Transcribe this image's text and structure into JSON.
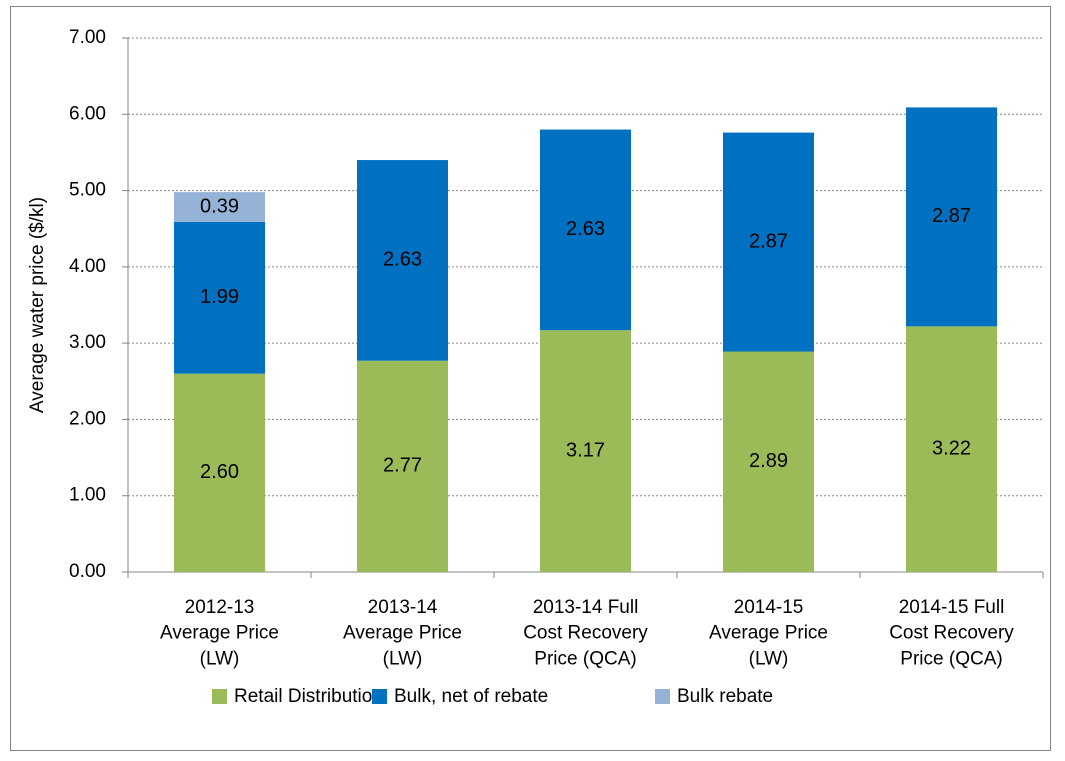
{
  "chart_data": {
    "type": "stacked_bar",
    "y_label": "Average water price ($/kl)",
    "categories": [
      "2012-13\nAverage Price\n(LW)",
      "2013-14\nAverage Price\n(LW)",
      "2013-14 Full\nCost Recovery\nPrice (QCA)",
      "2014-15\nAverage Price\n(LW)",
      "2014-15 Full\nCost Recovery\nPrice (QCA)"
    ],
    "series": [
      {
        "name": "Retail Distribution",
        "color": "#9bbb59",
        "values": [
          2.6,
          2.77,
          3.17,
          2.89,
          3.22
        ],
        "value_labels": [
          "2.60",
          "2.77",
          "3.17",
          "2.89",
          "3.22"
        ]
      },
      {
        "name": "Bulk, net of rebate",
        "color": "#0070c0",
        "values": [
          1.99,
          2.63,
          2.63,
          2.87,
          2.87
        ],
        "value_labels": [
          "1.99",
          "2.63",
          "2.63",
          "2.87",
          "2.87"
        ]
      },
      {
        "name": "Bulk rebate",
        "color": "#95b3d7",
        "values": [
          0.39,
          null,
          null,
          null,
          null
        ],
        "value_labels": [
          "0.39",
          null,
          null,
          null,
          null
        ]
      }
    ],
    "ylim": [
      0,
      7
    ],
    "yticks": [
      {
        "value": 0,
        "label": "0.00"
      },
      {
        "value": 1,
        "label": "1.00"
      },
      {
        "value": 2,
        "label": "2.00"
      },
      {
        "value": 3,
        "label": "3.00"
      },
      {
        "value": 4,
        "label": "4.00"
      },
      {
        "value": 5,
        "label": "5.00"
      },
      {
        "value": 6,
        "label": "6.00"
      },
      {
        "value": 7,
        "label": "7.00"
      }
    ],
    "grid": true
  }
}
